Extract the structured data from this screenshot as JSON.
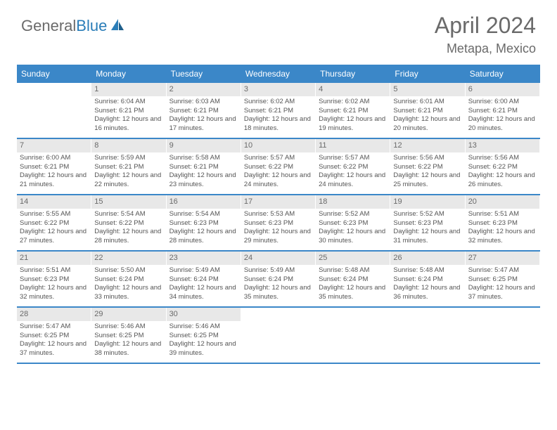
{
  "brand": {
    "name_a": "General",
    "name_b": "Blue"
  },
  "title": "April 2024",
  "location": "Metapa, Mexico",
  "colors": {
    "header_bg": "#3b87c8",
    "header_text": "#ffffff",
    "daynum_bg": "#e8e8e8",
    "text": "#555555",
    "row_border": "#3b87c8",
    "logo_gray": "#6b6b6b",
    "logo_blue": "#2a7db8"
  },
  "weekdays": [
    "Sunday",
    "Monday",
    "Tuesday",
    "Wednesday",
    "Thursday",
    "Friday",
    "Saturday"
  ],
  "weeks": [
    [
      {
        "n": "",
        "lines": []
      },
      {
        "n": "1",
        "lines": [
          "Sunrise: 6:04 AM",
          "Sunset: 6:21 PM",
          "Daylight: 12 hours and 16 minutes."
        ]
      },
      {
        "n": "2",
        "lines": [
          "Sunrise: 6:03 AM",
          "Sunset: 6:21 PM",
          "Daylight: 12 hours and 17 minutes."
        ]
      },
      {
        "n": "3",
        "lines": [
          "Sunrise: 6:02 AM",
          "Sunset: 6:21 PM",
          "Daylight: 12 hours and 18 minutes."
        ]
      },
      {
        "n": "4",
        "lines": [
          "Sunrise: 6:02 AM",
          "Sunset: 6:21 PM",
          "Daylight: 12 hours and 19 minutes."
        ]
      },
      {
        "n": "5",
        "lines": [
          "Sunrise: 6:01 AM",
          "Sunset: 6:21 PM",
          "Daylight: 12 hours and 20 minutes."
        ]
      },
      {
        "n": "6",
        "lines": [
          "Sunrise: 6:00 AM",
          "Sunset: 6:21 PM",
          "Daylight: 12 hours and 20 minutes."
        ]
      }
    ],
    [
      {
        "n": "7",
        "lines": [
          "Sunrise: 6:00 AM",
          "Sunset: 6:21 PM",
          "Daylight: 12 hours and 21 minutes."
        ]
      },
      {
        "n": "8",
        "lines": [
          "Sunrise: 5:59 AM",
          "Sunset: 6:21 PM",
          "Daylight: 12 hours and 22 minutes."
        ]
      },
      {
        "n": "9",
        "lines": [
          "Sunrise: 5:58 AM",
          "Sunset: 6:21 PM",
          "Daylight: 12 hours and 23 minutes."
        ]
      },
      {
        "n": "10",
        "lines": [
          "Sunrise: 5:57 AM",
          "Sunset: 6:22 PM",
          "Daylight: 12 hours and 24 minutes."
        ]
      },
      {
        "n": "11",
        "lines": [
          "Sunrise: 5:57 AM",
          "Sunset: 6:22 PM",
          "Daylight: 12 hours and 24 minutes."
        ]
      },
      {
        "n": "12",
        "lines": [
          "Sunrise: 5:56 AM",
          "Sunset: 6:22 PM",
          "Daylight: 12 hours and 25 minutes."
        ]
      },
      {
        "n": "13",
        "lines": [
          "Sunrise: 5:56 AM",
          "Sunset: 6:22 PM",
          "Daylight: 12 hours and 26 minutes."
        ]
      }
    ],
    [
      {
        "n": "14",
        "lines": [
          "Sunrise: 5:55 AM",
          "Sunset: 6:22 PM",
          "Daylight: 12 hours and 27 minutes."
        ]
      },
      {
        "n": "15",
        "lines": [
          "Sunrise: 5:54 AM",
          "Sunset: 6:22 PM",
          "Daylight: 12 hours and 28 minutes."
        ]
      },
      {
        "n": "16",
        "lines": [
          "Sunrise: 5:54 AM",
          "Sunset: 6:23 PM",
          "Daylight: 12 hours and 28 minutes."
        ]
      },
      {
        "n": "17",
        "lines": [
          "Sunrise: 5:53 AM",
          "Sunset: 6:23 PM",
          "Daylight: 12 hours and 29 minutes."
        ]
      },
      {
        "n": "18",
        "lines": [
          "Sunrise: 5:52 AM",
          "Sunset: 6:23 PM",
          "Daylight: 12 hours and 30 minutes."
        ]
      },
      {
        "n": "19",
        "lines": [
          "Sunrise: 5:52 AM",
          "Sunset: 6:23 PM",
          "Daylight: 12 hours and 31 minutes."
        ]
      },
      {
        "n": "20",
        "lines": [
          "Sunrise: 5:51 AM",
          "Sunset: 6:23 PM",
          "Daylight: 12 hours and 32 minutes."
        ]
      }
    ],
    [
      {
        "n": "21",
        "lines": [
          "Sunrise: 5:51 AM",
          "Sunset: 6:23 PM",
          "Daylight: 12 hours and 32 minutes."
        ]
      },
      {
        "n": "22",
        "lines": [
          "Sunrise: 5:50 AM",
          "Sunset: 6:24 PM",
          "Daylight: 12 hours and 33 minutes."
        ]
      },
      {
        "n": "23",
        "lines": [
          "Sunrise: 5:49 AM",
          "Sunset: 6:24 PM",
          "Daylight: 12 hours and 34 minutes."
        ]
      },
      {
        "n": "24",
        "lines": [
          "Sunrise: 5:49 AM",
          "Sunset: 6:24 PM",
          "Daylight: 12 hours and 35 minutes."
        ]
      },
      {
        "n": "25",
        "lines": [
          "Sunrise: 5:48 AM",
          "Sunset: 6:24 PM",
          "Daylight: 12 hours and 35 minutes."
        ]
      },
      {
        "n": "26",
        "lines": [
          "Sunrise: 5:48 AM",
          "Sunset: 6:24 PM",
          "Daylight: 12 hours and 36 minutes."
        ]
      },
      {
        "n": "27",
        "lines": [
          "Sunrise: 5:47 AM",
          "Sunset: 6:25 PM",
          "Daylight: 12 hours and 37 minutes."
        ]
      }
    ],
    [
      {
        "n": "28",
        "lines": [
          "Sunrise: 5:47 AM",
          "Sunset: 6:25 PM",
          "Daylight: 12 hours and 37 minutes."
        ]
      },
      {
        "n": "29",
        "lines": [
          "Sunrise: 5:46 AM",
          "Sunset: 6:25 PM",
          "Daylight: 12 hours and 38 minutes."
        ]
      },
      {
        "n": "30",
        "lines": [
          "Sunrise: 5:46 AM",
          "Sunset: 6:25 PM",
          "Daylight: 12 hours and 39 minutes."
        ]
      },
      {
        "n": "",
        "lines": []
      },
      {
        "n": "",
        "lines": []
      },
      {
        "n": "",
        "lines": []
      },
      {
        "n": "",
        "lines": []
      }
    ]
  ]
}
